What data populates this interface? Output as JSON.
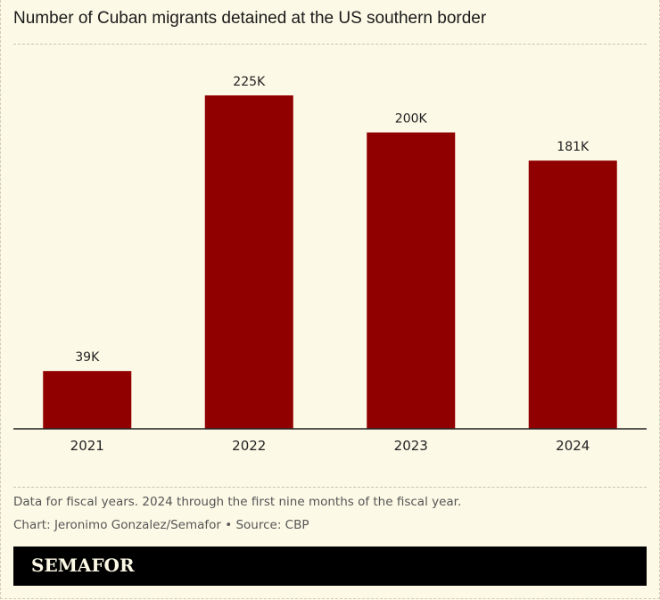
{
  "chart_data": {
    "type": "bar",
    "title": "Number of Cuban migrants detained at the US southern border",
    "categories": [
      "2021",
      "2022",
      "2023",
      "2024"
    ],
    "values": [
      39,
      225,
      200,
      181
    ],
    "labels": [
      "39K",
      "225K",
      "200K",
      "181K"
    ],
    "unit": "thousands",
    "xlabel": "",
    "ylabel": "",
    "ylim": [
      0,
      225
    ],
    "grid": false,
    "bar_color": "#910000"
  },
  "notes": {
    "line1": "Data for fiscal years. 2024 through the first nine months of the fiscal year.",
    "line2": "Chart: Jeronimo Gonzalez/Semafor • Source: CBP"
  },
  "brand": {
    "logo": "SEMAFOR"
  }
}
